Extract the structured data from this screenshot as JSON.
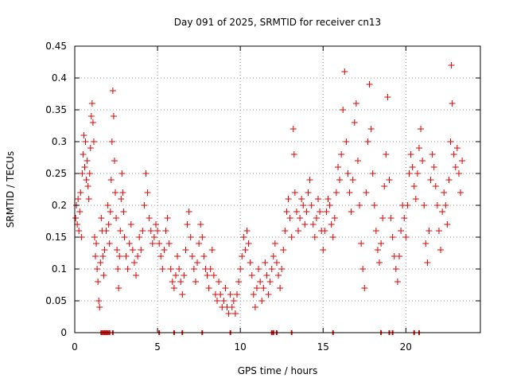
{
  "chart_data": {
    "type": "scatter",
    "title": "Day 091 of 2025, SRMTID for receiver cn13",
    "xlabel": "GPS time / hours",
    "ylabel": "SRMTID / TECUs",
    "xlim": [
      0,
      24.5
    ],
    "ylim": [
      0,
      0.45
    ],
    "x_ticks": [
      0,
      5,
      10,
      15,
      20
    ],
    "x_tick_labels": [
      "0",
      "5",
      "10",
      "15",
      "20"
    ],
    "y_ticks": [
      0,
      0.05,
      0.1,
      0.15,
      0.2,
      0.25,
      0.3,
      0.35,
      0.4,
      0.45
    ],
    "y_tick_labels": [
      "0",
      "0.05",
      "0.1",
      "0.15",
      "0.2",
      "0.25",
      "0.3",
      "0.35",
      "0.4",
      "0.45"
    ],
    "grid": true,
    "marker": "plus",
    "color": "#e00000",
    "series": [
      {
        "name": "SRMTID",
        "points": [
          [
            0.05,
            0.18
          ],
          [
            0.1,
            0.2
          ],
          [
            0.15,
            0.17
          ],
          [
            0.2,
            0.21
          ],
          [
            0.25,
            0.16
          ],
          [
            0.3,
            0.19
          ],
          [
            0.35,
            0.22
          ],
          [
            0.4,
            0.15
          ],
          [
            0.45,
            0.25
          ],
          [
            0.5,
            0.28
          ],
          [
            0.55,
            0.31
          ],
          [
            0.6,
            0.26
          ],
          [
            0.65,
            0.3
          ],
          [
            0.7,
            0.24
          ],
          [
            0.75,
            0.27
          ],
          [
            0.8,
            0.23
          ],
          [
            0.85,
            0.21
          ],
          [
            0.9,
            0.25
          ],
          [
            0.95,
            0.29
          ],
          [
            1.0,
            0.34
          ],
          [
            1.05,
            0.36
          ],
          [
            1.1,
            0.33
          ],
          [
            1.15,
            0.3
          ],
          [
            1.2,
            0.15
          ],
          [
            1.25,
            0.12
          ],
          [
            1.3,
            0.14
          ],
          [
            1.35,
            0.1
          ],
          [
            1.4,
            0.08
          ],
          [
            1.45,
            0.05
          ],
          [
            1.5,
            0.04
          ],
          [
            1.55,
            0.11
          ],
          [
            1.6,
            0.18
          ],
          [
            1.65,
            0.16
          ],
          [
            1.7,
            0.12
          ],
          [
            1.75,
            0.09
          ],
          [
            1.8,
            0.13
          ],
          [
            1.9,
            0.16
          ],
          [
            2.0,
            0.2
          ],
          [
            2.05,
            0.17
          ],
          [
            2.1,
            0.14
          ],
          [
            2.15,
            0.19
          ],
          [
            2.2,
            0.24
          ],
          [
            2.25,
            0.3
          ],
          [
            2.3,
            0.38
          ],
          [
            2.35,
            0.34
          ],
          [
            2.4,
            0.27
          ],
          [
            2.45,
            0.22
          ],
          [
            2.5,
            0.18
          ],
          [
            2.55,
            0.13
          ],
          [
            2.6,
            0.1
          ],
          [
            2.65,
            0.07
          ],
          [
            2.7,
            0.12
          ],
          [
            2.75,
            0.16
          ],
          [
            2.8,
            0.21
          ],
          [
            2.85,
            0.25
          ],
          [
            2.9,
            0.22
          ],
          [
            2.95,
            0.19
          ],
          [
            3.0,
            0.15
          ],
          [
            3.1,
            0.12
          ],
          [
            3.2,
            0.1
          ],
          [
            3.3,
            0.14
          ],
          [
            3.4,
            0.17
          ],
          [
            3.5,
            0.13
          ],
          [
            3.6,
            0.11
          ],
          [
            3.7,
            0.09
          ],
          [
            3.8,
            0.12
          ],
          [
            3.9,
            0.15
          ],
          [
            4.0,
            0.13
          ],
          [
            4.1,
            0.16
          ],
          [
            4.2,
            0.2
          ],
          [
            4.3,
            0.25
          ],
          [
            4.4,
            0.22
          ],
          [
            4.5,
            0.18
          ],
          [
            4.6,
            0.16
          ],
          [
            4.7,
            0.14
          ],
          [
            4.8,
            0.15
          ],
          [
            4.9,
            0.17
          ],
          [
            5.0,
            0.16
          ],
          [
            5.1,
            0.14
          ],
          [
            5.2,
            0.12
          ],
          [
            5.3,
            0.1
          ],
          [
            5.4,
            0.13
          ],
          [
            5.5,
            0.16
          ],
          [
            5.6,
            0.18
          ],
          [
            5.7,
            0.14
          ],
          [
            5.8,
            0.1
          ],
          [
            5.9,
            0.08
          ],
          [
            6.0,
            0.07
          ],
          [
            6.1,
            0.09
          ],
          [
            6.2,
            0.12
          ],
          [
            6.3,
            0.1
          ],
          [
            6.4,
            0.08
          ],
          [
            6.5,
            0.06
          ],
          [
            6.6,
            0.09
          ],
          [
            6.7,
            0.13
          ],
          [
            6.8,
            0.17
          ],
          [
            6.9,
            0.19
          ],
          [
            7.0,
            0.15
          ],
          [
            7.1,
            0.12
          ],
          [
            7.2,
            0.1
          ],
          [
            7.3,
            0.08
          ],
          [
            7.4,
            0.11
          ],
          [
            7.5,
            0.14
          ],
          [
            7.6,
            0.17
          ],
          [
            7.7,
            0.15
          ],
          [
            7.8,
            0.12
          ],
          [
            7.9,
            0.1
          ],
          [
            8.0,
            0.09
          ],
          [
            8.1,
            0.07
          ],
          [
            8.2,
            0.1
          ],
          [
            8.3,
            0.13
          ],
          [
            8.4,
            0.09
          ],
          [
            8.5,
            0.06
          ],
          [
            8.6,
            0.05
          ],
          [
            8.7,
            0.08
          ],
          [
            8.8,
            0.06
          ],
          [
            8.9,
            0.04
          ],
          [
            9.0,
            0.05
          ],
          [
            9.1,
            0.07
          ],
          [
            9.2,
            0.04
          ],
          [
            9.3,
            0.03
          ],
          [
            9.4,
            0.06
          ],
          [
            9.5,
            0.04
          ],
          [
            9.6,
            0.05
          ],
          [
            9.7,
            0.03
          ],
          [
            9.8,
            0.06
          ],
          [
            9.9,
            0.08
          ],
          [
            10.0,
            0.1
          ],
          [
            10.1,
            0.12
          ],
          [
            10.2,
            0.15
          ],
          [
            10.3,
            0.13
          ],
          [
            10.4,
            0.16
          ],
          [
            10.5,
            0.14
          ],
          [
            10.6,
            0.11
          ],
          [
            10.7,
            0.09
          ],
          [
            10.8,
            0.06
          ],
          [
            10.9,
            0.04
          ],
          [
            11.0,
            0.07
          ],
          [
            11.1,
            0.1
          ],
          [
            11.2,
            0.08
          ],
          [
            11.3,
            0.05
          ],
          [
            11.4,
            0.07
          ],
          [
            11.5,
            0.11
          ],
          [
            11.6,
            0.09
          ],
          [
            11.7,
            0.06
          ],
          [
            11.8,
            0.08
          ],
          [
            11.9,
            0.1
          ],
          [
            12.0,
            0.12
          ],
          [
            12.1,
            0.14
          ],
          [
            12.2,
            0.11
          ],
          [
            12.3,
            0.09
          ],
          [
            12.4,
            0.07
          ],
          [
            12.5,
            0.1
          ],
          [
            12.6,
            0.13
          ],
          [
            12.7,
            0.16
          ],
          [
            12.8,
            0.19
          ],
          [
            12.9,
            0.21
          ],
          [
            13.0,
            0.18
          ],
          [
            13.1,
            0.15
          ],
          [
            13.2,
            0.32
          ],
          [
            13.25,
            0.28
          ],
          [
            13.3,
            0.22
          ],
          [
            13.4,
            0.19
          ],
          [
            13.5,
            0.16
          ],
          [
            13.6,
            0.18
          ],
          [
            13.7,
            0.21
          ],
          [
            13.8,
            0.2
          ],
          [
            13.9,
            0.17
          ],
          [
            14.0,
            0.19
          ],
          [
            14.1,
            0.22
          ],
          [
            14.2,
            0.24
          ],
          [
            14.3,
            0.2
          ],
          [
            14.4,
            0.17
          ],
          [
            14.5,
            0.15
          ],
          [
            14.6,
            0.18
          ],
          [
            14.7,
            0.21
          ],
          [
            14.8,
            0.19
          ],
          [
            14.9,
            0.16
          ],
          [
            15.0,
            0.13
          ],
          [
            15.1,
            0.16
          ],
          [
            15.2,
            0.19
          ],
          [
            15.3,
            0.21
          ],
          [
            15.4,
            0.2
          ],
          [
            15.5,
            0.17
          ],
          [
            15.6,
            0.15
          ],
          [
            15.7,
            0.18
          ],
          [
            15.8,
            0.22
          ],
          [
            15.9,
            0.26
          ],
          [
            16.0,
            0.24
          ],
          [
            16.1,
            0.28
          ],
          [
            16.2,
            0.35
          ],
          [
            16.3,
            0.41
          ],
          [
            16.4,
            0.3
          ],
          [
            16.5,
            0.25
          ],
          [
            16.6,
            0.22
          ],
          [
            16.7,
            0.19
          ],
          [
            16.8,
            0.24
          ],
          [
            16.9,
            0.33
          ],
          [
            17.0,
            0.36
          ],
          [
            17.1,
            0.27
          ],
          [
            17.2,
            0.2
          ],
          [
            17.3,
            0.14
          ],
          [
            17.4,
            0.1
          ],
          [
            17.5,
            0.07
          ],
          [
            17.6,
            0.22
          ],
          [
            17.7,
            0.3
          ],
          [
            17.8,
            0.39
          ],
          [
            17.9,
            0.32
          ],
          [
            18.0,
            0.25
          ],
          [
            18.1,
            0.2
          ],
          [
            18.2,
            0.16
          ],
          [
            18.3,
            0.13
          ],
          [
            18.4,
            0.11
          ],
          [
            18.5,
            0.14
          ],
          [
            18.6,
            0.18
          ],
          [
            18.7,
            0.23
          ],
          [
            18.8,
            0.28
          ],
          [
            18.9,
            0.37
          ],
          [
            19.0,
            0.24
          ],
          [
            19.1,
            0.18
          ],
          [
            19.2,
            0.15
          ],
          [
            19.3,
            0.12
          ],
          [
            19.4,
            0.1
          ],
          [
            19.5,
            0.08
          ],
          [
            19.6,
            0.12
          ],
          [
            19.7,
            0.16
          ],
          [
            19.8,
            0.2
          ],
          [
            19.9,
            0.18
          ],
          [
            20.0,
            0.15
          ],
          [
            20.1,
            0.2
          ],
          [
            20.2,
            0.25
          ],
          [
            20.3,
            0.28
          ],
          [
            20.4,
            0.26
          ],
          [
            20.5,
            0.23
          ],
          [
            20.6,
            0.21
          ],
          [
            20.7,
            0.25
          ],
          [
            20.8,
            0.29
          ],
          [
            20.9,
            0.32
          ],
          [
            21.0,
            0.27
          ],
          [
            21.1,
            0.2
          ],
          [
            21.2,
            0.14
          ],
          [
            21.3,
            0.11
          ],
          [
            21.4,
            0.16
          ],
          [
            21.5,
            0.24
          ],
          [
            21.6,
            0.28
          ],
          [
            21.7,
            0.26
          ],
          [
            21.8,
            0.23
          ],
          [
            21.9,
            0.2
          ],
          [
            22.0,
            0.16
          ],
          [
            22.1,
            0.13
          ],
          [
            22.2,
            0.19
          ],
          [
            22.3,
            0.22
          ],
          [
            22.4,
            0.2
          ],
          [
            22.5,
            0.17
          ],
          [
            22.6,
            0.24
          ],
          [
            22.7,
            0.3
          ],
          [
            22.75,
            0.42
          ],
          [
            22.8,
            0.36
          ],
          [
            22.9,
            0.28
          ],
          [
            23.0,
            0.26
          ],
          [
            23.1,
            0.29
          ],
          [
            23.2,
            0.25
          ],
          [
            23.3,
            0.22
          ],
          [
            23.4,
            0.27
          ]
        ]
      }
    ],
    "zero_markers": [
      1.6,
      1.7,
      1.8,
      1.9,
      2.0,
      2.1,
      2.3,
      5.1,
      6.0,
      6.5,
      7.7,
      9.4,
      11.9,
      12.0,
      12.2,
      13.1,
      15.6,
      18.5,
      19.0,
      19.2,
      20.5,
      20.8
    ]
  }
}
